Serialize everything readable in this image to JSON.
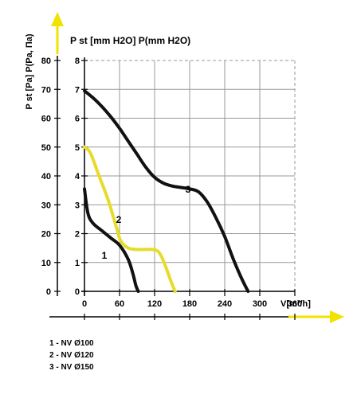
{
  "chart_data": {
    "type": "line",
    "ylabel_left": "P st [Pa] P(Pa, Па)",
    "ylabel_top": "P st [mm H2O] P(mm H2O)",
    "xlabel": "V[m³/h]",
    "pa_ticks": [
      "0",
      "10",
      "20",
      "30",
      "40",
      "50",
      "60",
      "70",
      "80"
    ],
    "mm_ticks": [
      "0",
      "1",
      "2",
      "3",
      "4",
      "5",
      "6",
      "7",
      "8"
    ],
    "x_ticks": [
      "0",
      "60",
      "120",
      "180",
      "240",
      "300",
      "360"
    ],
    "xlim": [
      0,
      360
    ],
    "ylim": [
      0,
      80
    ],
    "grid": true,
    "colors": {
      "curve_1": "#111111",
      "curve_2": "#e6dc2a",
      "curve_3": "#111111",
      "arrow": "#f2e200",
      "grid": "#999999"
    },
    "series": [
      {
        "name": "1",
        "x": [
          0,
          6,
          15,
          30,
          45,
          60,
          75,
          83,
          88,
          92
        ],
        "y": [
          35.5,
          27,
          23.5,
          21,
          18.5,
          16,
          11,
          6,
          2,
          0
        ]
      },
      {
        "name": "2",
        "x": [
          0,
          10,
          25,
          40,
          55,
          62,
          75,
          90,
          103,
          115,
          125,
          132,
          140,
          148,
          155
        ],
        "y": [
          50,
          48,
          40,
          32,
          22,
          17.5,
          15,
          14.5,
          14.5,
          14.5,
          14,
          12,
          8,
          3.5,
          0
        ]
      },
      {
        "name": "3",
        "x": [
          0,
          15,
          30,
          45,
          60,
          75,
          90,
          105,
          120,
          135,
          150,
          165,
          180,
          195,
          210,
          225,
          240,
          255,
          270,
          280
        ],
        "y": [
          69.5,
          67,
          64,
          60.5,
          56.5,
          52,
          47.5,
          43,
          39.5,
          37.5,
          36.5,
          36,
          35.5,
          34.5,
          31,
          25.5,
          19,
          11,
          4,
          0
        ]
      }
    ]
  },
  "legend": [
    "1 - NV Ø100",
    "2 - NV Ø120",
    "3 - NV Ø150"
  ]
}
